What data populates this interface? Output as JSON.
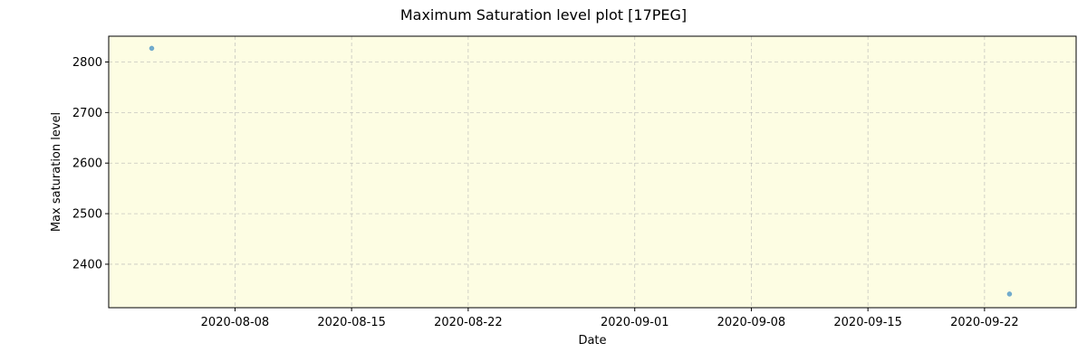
{
  "chart_data": {
    "type": "scatter",
    "title": "Maximum Saturation level plot [17PEG]",
    "xlabel": "Date",
    "ylabel": "Max saturation level",
    "x_is_date": true,
    "xlim": [
      "2020-07-31T10:00",
      "2020-09-27T12:00"
    ],
    "ylim": [
      2314,
      2851
    ],
    "x_ticks": [
      "2020-08-08",
      "2020-08-15",
      "2020-08-22",
      "2020-09-01",
      "2020-09-08",
      "2020-09-15",
      "2020-09-22"
    ],
    "y_ticks": [
      2400,
      2500,
      2600,
      2700,
      2800
    ],
    "grid": true,
    "background_color": "#fdfde3",
    "point_color": "#5b9ec9",
    "points": [
      {
        "x": "2020-08-03T00:00",
        "y": 2827
      },
      {
        "x": "2020-09-23T12:00",
        "y": 2341
      }
    ]
  }
}
